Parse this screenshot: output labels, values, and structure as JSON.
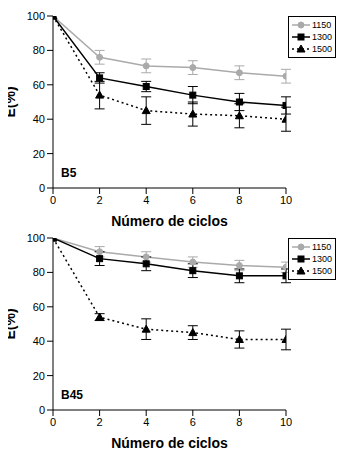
{
  "chart_data": [
    {
      "type": "line",
      "title": "B5",
      "x_label": "Número de ciclos",
      "y_label": "E(%)",
      "x": [
        0,
        2,
        4,
        6,
        8,
        10
      ],
      "xlim": [
        0,
        10
      ],
      "xticks": [
        0,
        2,
        4,
        6,
        8,
        10
      ],
      "ylim": [
        0,
        100
      ],
      "yticks": [
        0,
        20,
        40,
        60,
        80,
        100
      ],
      "grid": false,
      "legend": "upper right",
      "series": [
        {
          "name": "1150",
          "color": "#aaaaaa",
          "marker": "circle",
          "line_style": "solid",
          "values": [
            100,
            76,
            71,
            70,
            67,
            65
          ],
          "errors": [
            0,
            4,
            4,
            4,
            4,
            4
          ]
        },
        {
          "name": "1300",
          "color": "#000000",
          "marker": "square",
          "line_style": "solid",
          "values": [
            100,
            64,
            59,
            54,
            50,
            48
          ],
          "errors": [
            0,
            3,
            3,
            5,
            5,
            5
          ]
        },
        {
          "name": "1500",
          "color": "#000000",
          "marker": "triangle",
          "line_style": "dotted",
          "values": [
            100,
            54,
            45,
            43,
            42,
            40
          ],
          "errors": [
            0,
            8,
            8,
            7,
            7,
            7
          ]
        }
      ]
    },
    {
      "type": "line",
      "title": "B45",
      "x_label": "Número de ciclos",
      "y_label": "E(%)",
      "x": [
        0,
        2,
        4,
        6,
        8,
        10
      ],
      "xlim": [
        0,
        10
      ],
      "xticks": [
        0,
        2,
        4,
        6,
        8,
        10
      ],
      "ylim": [
        0,
        100
      ],
      "yticks": [
        0,
        20,
        40,
        60,
        80,
        100
      ],
      "grid": false,
      "legend": "upper right",
      "series": [
        {
          "name": "1150",
          "color": "#aaaaaa",
          "marker": "circle",
          "line_style": "solid",
          "values": [
            100,
            92,
            89,
            86,
            84,
            83
          ],
          "errors": [
            0,
            3,
            3,
            3,
            3,
            3
          ]
        },
        {
          "name": "1300",
          "color": "#000000",
          "marker": "square",
          "line_style": "solid",
          "values": [
            100,
            88,
            85,
            81,
            78,
            78
          ],
          "errors": [
            0,
            4,
            4,
            4,
            4,
            4
          ]
        },
        {
          "name": "1500",
          "color": "#000000",
          "marker": "triangle",
          "line_style": "dotted",
          "values": [
            100,
            54,
            47,
            45,
            41,
            41
          ],
          "errors": [
            0,
            2,
            6,
            4,
            5,
            6
          ]
        }
      ]
    }
  ]
}
